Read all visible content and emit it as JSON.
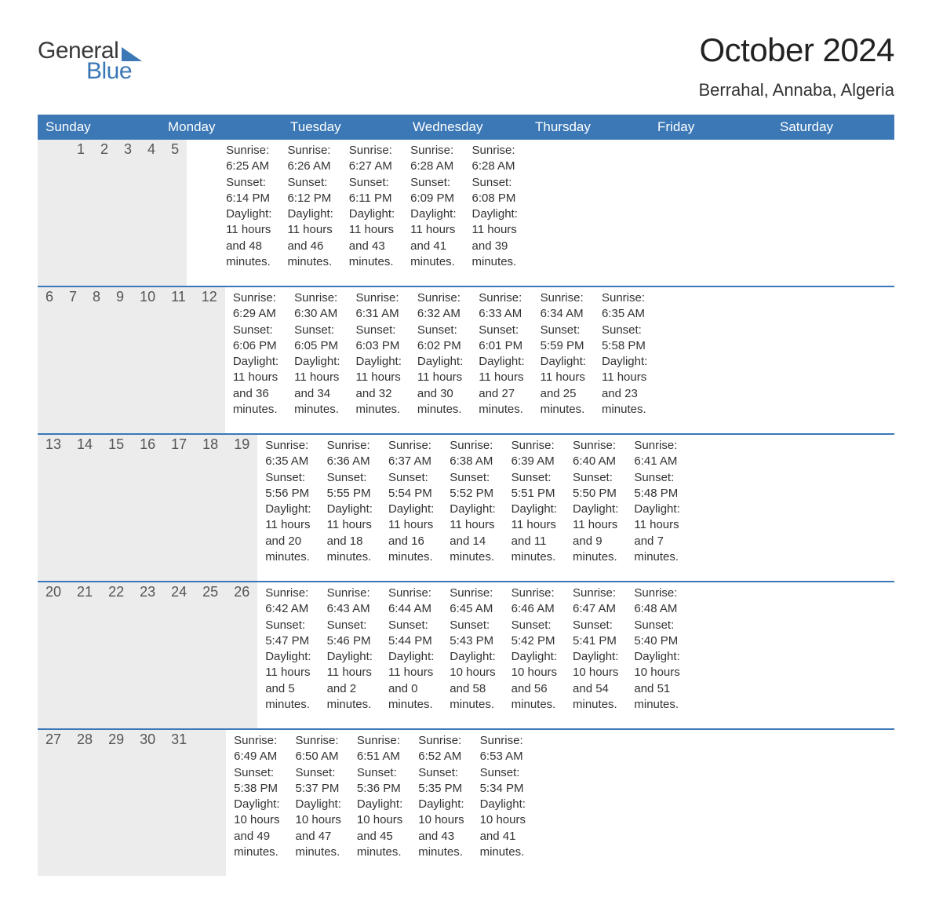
{
  "logo": {
    "word1": "General",
    "word2": "Blue"
  },
  "title": "October 2024",
  "location": "Berrahal, Annaba, Algeria",
  "colors": {
    "header_blue": "#3b78b5",
    "row_header_bg": "#ececec",
    "divider": "#3b78b5",
    "page_bg": "#ffffff",
    "text": "#333333"
  },
  "typography": {
    "title_fontsize": 42,
    "subtitle_fontsize": 22,
    "dow_fontsize": 17,
    "daynum_fontsize": 18,
    "body_fontsize": 15
  },
  "daysOfWeek": [
    "Sunday",
    "Monday",
    "Tuesday",
    "Wednesday",
    "Thursday",
    "Friday",
    "Saturday"
  ],
  "blanksBefore": 2,
  "days": [
    {
      "n": 1,
      "sunrise": "6:25 AM",
      "sunset": "6:14 PM",
      "dh": 11,
      "dm": 48
    },
    {
      "n": 2,
      "sunrise": "6:26 AM",
      "sunset": "6:12 PM",
      "dh": 11,
      "dm": 46
    },
    {
      "n": 3,
      "sunrise": "6:27 AM",
      "sunset": "6:11 PM",
      "dh": 11,
      "dm": 43
    },
    {
      "n": 4,
      "sunrise": "6:28 AM",
      "sunset": "6:09 PM",
      "dh": 11,
      "dm": 41
    },
    {
      "n": 5,
      "sunrise": "6:28 AM",
      "sunset": "6:08 PM",
      "dh": 11,
      "dm": 39
    },
    {
      "n": 6,
      "sunrise": "6:29 AM",
      "sunset": "6:06 PM",
      "dh": 11,
      "dm": 36
    },
    {
      "n": 7,
      "sunrise": "6:30 AM",
      "sunset": "6:05 PM",
      "dh": 11,
      "dm": 34
    },
    {
      "n": 8,
      "sunrise": "6:31 AM",
      "sunset": "6:03 PM",
      "dh": 11,
      "dm": 32
    },
    {
      "n": 9,
      "sunrise": "6:32 AM",
      "sunset": "6:02 PM",
      "dh": 11,
      "dm": 30
    },
    {
      "n": 10,
      "sunrise": "6:33 AM",
      "sunset": "6:01 PM",
      "dh": 11,
      "dm": 27
    },
    {
      "n": 11,
      "sunrise": "6:34 AM",
      "sunset": "5:59 PM",
      "dh": 11,
      "dm": 25
    },
    {
      "n": 12,
      "sunrise": "6:35 AM",
      "sunset": "5:58 PM",
      "dh": 11,
      "dm": 23
    },
    {
      "n": 13,
      "sunrise": "6:35 AM",
      "sunset": "5:56 PM",
      "dh": 11,
      "dm": 20
    },
    {
      "n": 14,
      "sunrise": "6:36 AM",
      "sunset": "5:55 PM",
      "dh": 11,
      "dm": 18
    },
    {
      "n": 15,
      "sunrise": "6:37 AM",
      "sunset": "5:54 PM",
      "dh": 11,
      "dm": 16
    },
    {
      "n": 16,
      "sunrise": "6:38 AM",
      "sunset": "5:52 PM",
      "dh": 11,
      "dm": 14
    },
    {
      "n": 17,
      "sunrise": "6:39 AM",
      "sunset": "5:51 PM",
      "dh": 11,
      "dm": 11
    },
    {
      "n": 18,
      "sunrise": "6:40 AM",
      "sunset": "5:50 PM",
      "dh": 11,
      "dm": 9
    },
    {
      "n": 19,
      "sunrise": "6:41 AM",
      "sunset": "5:48 PM",
      "dh": 11,
      "dm": 7
    },
    {
      "n": 20,
      "sunrise": "6:42 AM",
      "sunset": "5:47 PM",
      "dh": 11,
      "dm": 5
    },
    {
      "n": 21,
      "sunrise": "6:43 AM",
      "sunset": "5:46 PM",
      "dh": 11,
      "dm": 2
    },
    {
      "n": 22,
      "sunrise": "6:44 AM",
      "sunset": "5:44 PM",
      "dh": 11,
      "dm": 0
    },
    {
      "n": 23,
      "sunrise": "6:45 AM",
      "sunset": "5:43 PM",
      "dh": 10,
      "dm": 58
    },
    {
      "n": 24,
      "sunrise": "6:46 AM",
      "sunset": "5:42 PM",
      "dh": 10,
      "dm": 56
    },
    {
      "n": 25,
      "sunrise": "6:47 AM",
      "sunset": "5:41 PM",
      "dh": 10,
      "dm": 54
    },
    {
      "n": 26,
      "sunrise": "6:48 AM",
      "sunset": "5:40 PM",
      "dh": 10,
      "dm": 51
    },
    {
      "n": 27,
      "sunrise": "6:49 AM",
      "sunset": "5:38 PM",
      "dh": 10,
      "dm": 49
    },
    {
      "n": 28,
      "sunrise": "6:50 AM",
      "sunset": "5:37 PM",
      "dh": 10,
      "dm": 47
    },
    {
      "n": 29,
      "sunrise": "6:51 AM",
      "sunset": "5:36 PM",
      "dh": 10,
      "dm": 45
    },
    {
      "n": 30,
      "sunrise": "6:52 AM",
      "sunset": "5:35 PM",
      "dh": 10,
      "dm": 43
    },
    {
      "n": 31,
      "sunrise": "6:53 AM",
      "sunset": "5:34 PM",
      "dh": 10,
      "dm": 41
    }
  ],
  "labels": {
    "sunrise": "Sunrise:",
    "sunset": "Sunset:",
    "daylight": "Daylight:",
    "hours": "hours",
    "and": "and",
    "minutes": "minutes."
  }
}
